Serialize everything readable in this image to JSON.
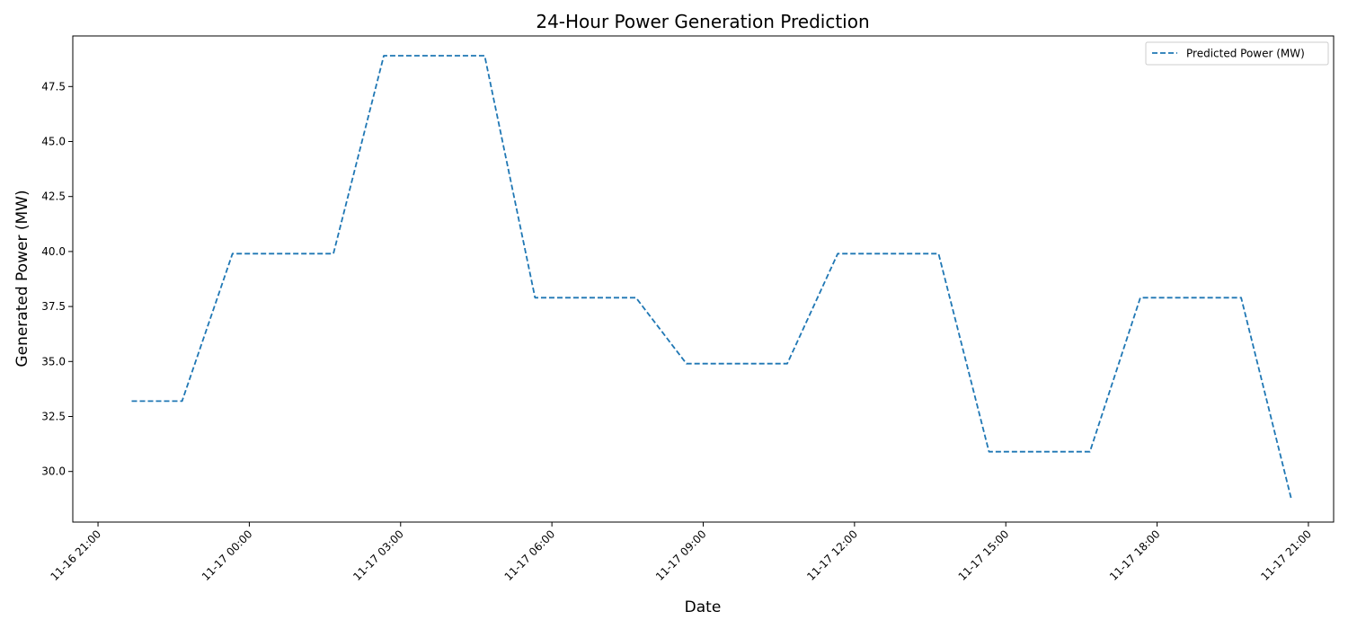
{
  "chart_data": {
    "type": "line",
    "title": "24-Hour Power Generation Prediction",
    "xlabel": "Date",
    "ylabel": "Generated Power (MW)",
    "x_unit": "hours",
    "xlim": [
      "11-16 20:30",
      "11-17 21:30"
    ],
    "ylim": [
      27.7,
      49.8
    ],
    "x_ticks": [
      "11-16 21:00",
      "11-17 00:00",
      "11-17 03:00",
      "11-17 06:00",
      "11-17 09:00",
      "11-17 12:00",
      "11-17 15:00",
      "11-17 18:00",
      "11-17 21:00"
    ],
    "y_ticks": [
      "30.0",
      "32.5",
      "35.0",
      "37.5",
      "40.0",
      "42.5",
      "45.0",
      "47.5"
    ],
    "legend": {
      "position": "top-right",
      "entries": [
        "Predicted Power (MW)"
      ]
    },
    "grid": false,
    "series": [
      {
        "name": "Predicted Power (MW)",
        "color": "#1f77b4",
        "style": "dashed",
        "x": [
          "11-16 21:40",
          "11-16 22:40",
          "11-16 23:40",
          "11-17 00:40",
          "11-17 01:40",
          "11-17 02:40",
          "11-17 03:40",
          "11-17 04:40",
          "11-17 05:40",
          "11-17 06:40",
          "11-17 07:40",
          "11-17 08:40",
          "11-17 09:40",
          "11-17 10:40",
          "11-17 11:40",
          "11-17 12:40",
          "11-17 13:40",
          "11-17 14:40",
          "11-17 15:40",
          "11-17 16:40",
          "11-17 17:40",
          "11-17 18:40",
          "11-17 19:40",
          "11-17 20:40"
        ],
        "values": [
          33.2,
          33.2,
          39.9,
          39.9,
          39.9,
          48.9,
          48.9,
          48.9,
          37.9,
          37.9,
          37.9,
          34.9,
          34.9,
          34.9,
          39.9,
          39.9,
          39.9,
          30.9,
          30.9,
          30.9,
          37.9,
          37.9,
          37.9,
          28.7
        ]
      }
    ]
  }
}
